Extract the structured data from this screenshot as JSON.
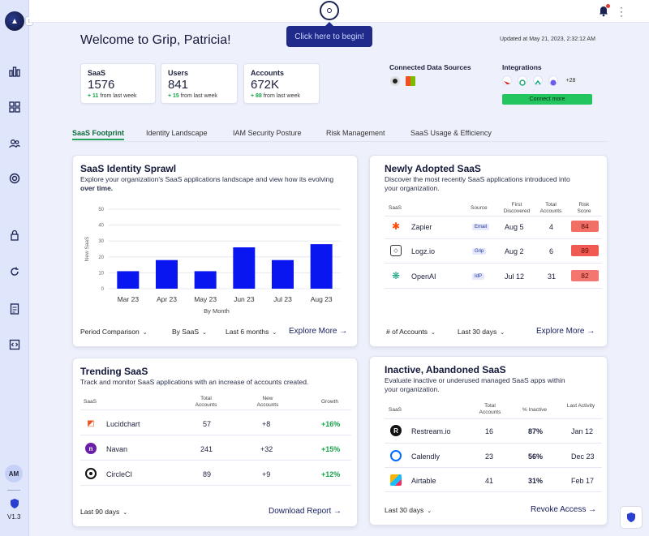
{
  "sidebar": {
    "avatar": "AM",
    "version": "V1.3"
  },
  "topbar": {
    "tooltip": "Click here to begin!"
  },
  "header": {
    "welcome": "Welcome to Grip, Patricia!",
    "updated": "Updated at May 21, 2023, 2:32:12 AM"
  },
  "stats": [
    {
      "label": "SaaS",
      "value": "1576",
      "delta": "+ 11",
      "delta_text": " from last week"
    },
    {
      "label": "Users",
      "value": "841",
      "delta": "+ 15",
      "delta_text": " from last week"
    },
    {
      "label": "Accounts",
      "value": "672K",
      "delta": "+ 88",
      "delta_text": " from last week"
    }
  ],
  "data_sources": {
    "title": "Connected Data Sources"
  },
  "integrations": {
    "title": "Integrations",
    "more": "+28",
    "connect": "Connect more"
  },
  "tabs": [
    "SaaS Footprint",
    "Identity Landscape",
    "IAM Security Posture",
    "Risk Management",
    "SaaS Usage & Efficiency"
  ],
  "sprawl": {
    "title": "SaaS Identity Sprawl",
    "desc": "Explore your organization's SaaS applications landscape and view how its evolving ",
    "desc_bold": "over time.",
    "filters": [
      "Period Comparison",
      "By SaaS",
      "Last 6 months"
    ],
    "explore": "Explore More"
  },
  "chart_data": {
    "type": "bar",
    "categories": [
      "Mar 23",
      "Apr 23",
      "May 23",
      "Jun 23",
      "Jul 23",
      "Aug 23"
    ],
    "values": [
      11,
      18,
      11,
      26,
      18,
      28
    ],
    "ylabel": "New SaaS",
    "xlabel": "By Month",
    "yticks": [
      0,
      10,
      20,
      30,
      40,
      50
    ],
    "ylim": [
      0,
      50
    ],
    "bar_color": "#0a16f0"
  },
  "newly": {
    "title": "Newly Adopted SaaS",
    "desc1": "Discover the most recently SaaS applications introduced into",
    "desc2": "your organization.",
    "headers": [
      "SaaS",
      "Source",
      "First Discovered",
      "Total Accounts",
      "Risk Score"
    ],
    "rows": [
      {
        "name": "Zapier",
        "source": "Email",
        "date": "Aug 5",
        "accounts": "4",
        "risk": "84"
      },
      {
        "name": "Logz.io",
        "source": "Grip",
        "date": "Aug 2",
        "accounts": "6",
        "risk": "89"
      },
      {
        "name": "OpenAI",
        "source": "IdP",
        "date": "Jul 12",
        "accounts": "31",
        "risk": "82"
      }
    ],
    "filters": [
      "# of Accounts",
      "Last 30 days"
    ],
    "explore": "Explore More"
  },
  "trending": {
    "title": "Trending SaaS",
    "desc": "Track and monitor SaaS applications with an increase of accounts created.",
    "headers": [
      "SaaS",
      "Total Accounts",
      "New Accounts",
      "Growth"
    ],
    "rows": [
      {
        "name": "Lucidchart",
        "total": "57",
        "new": "+8",
        "growth": "+16%"
      },
      {
        "name": "Navan",
        "total": "241",
        "new": "+32",
        "growth": "+15%"
      },
      {
        "name": "CircleCI",
        "total": "89",
        "new": "+9",
        "growth": "+12%"
      }
    ],
    "filter": "Last 90 days",
    "action": "Download Report"
  },
  "inactive": {
    "title": "Inactive, Abandoned SaaS",
    "desc1": "Evaluate inactive or underused managed SaaS apps within",
    "desc2": "your organization.",
    "headers": [
      "SaaS",
      "Total Accounts",
      "% Inactive",
      "Last Activity"
    ],
    "rows": [
      {
        "name": "Restream.io",
        "total": "16",
        "pct": "87%",
        "last": "Jan 12"
      },
      {
        "name": "Calendly",
        "total": "23",
        "pct": "56%",
        "last": "Dec 23"
      },
      {
        "name": "Airtable",
        "total": "41",
        "pct": "31%",
        "last": "Feb 17"
      }
    ],
    "filter": "Last 30 days",
    "action": "Revoke Access"
  }
}
